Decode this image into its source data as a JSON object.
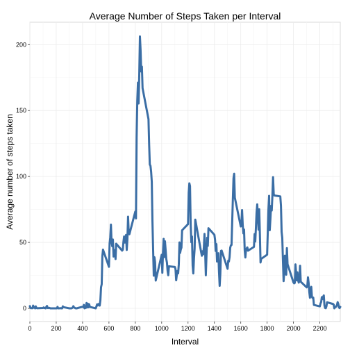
{
  "chart_data": {
    "type": "line",
    "title": "Average Number of Steps Taken per Interval",
    "xlabel": "Interval",
    "ylabel": "Average number of steps taken",
    "xlim": [
      0,
      2355
    ],
    "ylim": [
      -10,
      217
    ],
    "x_ticks": [
      0,
      200,
      400,
      600,
      800,
      1000,
      1200,
      1400,
      1600,
      1800,
      2000,
      2200
    ],
    "y_ticks": [
      0,
      50,
      100,
      150,
      200
    ],
    "grid": true,
    "legend": "none",
    "line_color": "#3b6ea5",
    "background": "#ffffff",
    "grid_color": "#ebebeb",
    "series": [
      {
        "points": [
          [
            0,
            1.7
          ],
          [
            5,
            0.3
          ],
          [
            10,
            0.1
          ],
          [
            15,
            0.2
          ],
          [
            20,
            0.1
          ],
          [
            25,
            2.1
          ],
          [
            30,
            0.5
          ],
          [
            35,
            0.9
          ],
          [
            40,
            0
          ],
          [
            45,
            1.5
          ],
          [
            50,
            0.3
          ],
          [
            55,
            0.1
          ],
          [
            100,
            0.3
          ],
          [
            105,
            0.7
          ],
          [
            110,
            0.2
          ],
          [
            115,
            0.3
          ],
          [
            120,
            0
          ],
          [
            125,
            1.1
          ],
          [
            130,
            1.8
          ],
          [
            135,
            0.2
          ],
          [
            140,
            0.2
          ],
          [
            145,
            0.4
          ],
          [
            150,
            0.3
          ],
          [
            155,
            0
          ],
          [
            200,
            0
          ],
          [
            205,
            0
          ],
          [
            210,
            1.1
          ],
          [
            215,
            0
          ],
          [
            220,
            0
          ],
          [
            225,
            0.1
          ],
          [
            230,
            0
          ],
          [
            235,
            0.2
          ],
          [
            240,
            0
          ],
          [
            245,
            0
          ],
          [
            250,
            1.5
          ],
          [
            255,
            0.9
          ],
          [
            300,
            0
          ],
          [
            305,
            0
          ],
          [
            310,
            0
          ],
          [
            315,
            0
          ],
          [
            320,
            0.2
          ],
          [
            325,
            0.6
          ],
          [
            330,
            1.6
          ],
          [
            335,
            0.6
          ],
          [
            340,
            0.5
          ],
          [
            345,
            0.1
          ],
          [
            350,
            0
          ],
          [
            355,
            0
          ],
          [
            400,
            1.2
          ],
          [
            405,
            0.9
          ],
          [
            410,
            2.6
          ],
          [
            415,
            0
          ],
          [
            420,
            0.3
          ],
          [
            425,
            0.4
          ],
          [
            430,
            4.1
          ],
          [
            435,
            0.7
          ],
          [
            440,
            3.5
          ],
          [
            445,
            0.8
          ],
          [
            450,
            3.1
          ],
          [
            455,
            1.1
          ],
          [
            500,
            0
          ],
          [
            505,
            1.5
          ],
          [
            510,
            3.0
          ],
          [
            515,
            2.2
          ],
          [
            520,
            3.3
          ],
          [
            525,
            3.0
          ],
          [
            530,
            2.1
          ],
          [
            535,
            6.1
          ],
          [
            540,
            16.0
          ],
          [
            545,
            18.3
          ],
          [
            550,
            39.5
          ],
          [
            555,
            44.5
          ],
          [
            600,
            31.5
          ],
          [
            605,
            49.3
          ],
          [
            610,
            53.8
          ],
          [
            615,
            63.5
          ],
          [
            620,
            50.0
          ],
          [
            625,
            47.1
          ],
          [
            630,
            52.2
          ],
          [
            635,
            39.3
          ],
          [
            640,
            44.0
          ],
          [
            645,
            44.2
          ],
          [
            650,
            37.4
          ],
          [
            655,
            49.0
          ],
          [
            700,
            43.8
          ],
          [
            705,
            44.4
          ],
          [
            710,
            50.5
          ],
          [
            715,
            54.5
          ],
          [
            720,
            49.9
          ],
          [
            725,
            50.9
          ],
          [
            730,
            55.7
          ],
          [
            735,
            44.3
          ],
          [
            740,
            52.3
          ],
          [
            745,
            69.5
          ],
          [
            750,
            57.8
          ],
          [
            755,
            56.2
          ],
          [
            800,
            73.4
          ],
          [
            805,
            68.2
          ],
          [
            810,
            129.4
          ],
          [
            815,
            157.5
          ],
          [
            820,
            171.2
          ],
          [
            825,
            155.4
          ],
          [
            830,
            177.3
          ],
          [
            835,
            206.2
          ],
          [
            840,
            195.9
          ],
          [
            845,
            179.6
          ],
          [
            850,
            183.4
          ],
          [
            855,
            167.0
          ],
          [
            900,
            143.5
          ],
          [
            905,
            124.0
          ],
          [
            910,
            109.1
          ],
          [
            915,
            108.1
          ],
          [
            920,
            103.7
          ],
          [
            925,
            95.97
          ],
          [
            930,
            66.2
          ],
          [
            935,
            45.2
          ],
          [
            940,
            24.8
          ],
          [
            945,
            38.8
          ],
          [
            950,
            35.0
          ],
          [
            955,
            21.1
          ],
          [
            1000,
            40.6
          ],
          [
            1005,
            26.98
          ],
          [
            1010,
            42.4
          ],
          [
            1015,
            52.7
          ],
          [
            1020,
            38.9
          ],
          [
            1025,
            50.8
          ],
          [
            1030,
            44.3
          ],
          [
            1035,
            37.4
          ],
          [
            1040,
            34.7
          ],
          [
            1045,
            28.3
          ],
          [
            1050,
            25.1
          ],
          [
            1055,
            31.9
          ],
          [
            1100,
            31.4
          ],
          [
            1105,
            29.7
          ],
          [
            1110,
            21.3
          ],
          [
            1115,
            25.5
          ],
          [
            1120,
            28.4
          ],
          [
            1125,
            26.5
          ],
          [
            1130,
            33.4
          ],
          [
            1135,
            49.98
          ],
          [
            1140,
            42.0
          ],
          [
            1145,
            44.6
          ],
          [
            1150,
            46.0
          ],
          [
            1155,
            59.2
          ],
          [
            1200,
            63.9
          ],
          [
            1205,
            87.7
          ],
          [
            1210,
            94.8
          ],
          [
            1215,
            92.8
          ],
          [
            1220,
            63.4
          ],
          [
            1225,
            50.2
          ],
          [
            1230,
            54.5
          ],
          [
            1235,
            32.4
          ],
          [
            1240,
            26.5
          ],
          [
            1245,
            37.7
          ],
          [
            1250,
            45.1
          ],
          [
            1255,
            67.3
          ],
          [
            1300,
            42.3
          ],
          [
            1305,
            39.9
          ],
          [
            1310,
            43.3
          ],
          [
            1315,
            40.98
          ],
          [
            1320,
            46.2
          ],
          [
            1325,
            56.4
          ],
          [
            1330,
            42.8
          ],
          [
            1335,
            25.1
          ],
          [
            1340,
            39.96
          ],
          [
            1345,
            53.5
          ],
          [
            1350,
            47.4
          ],
          [
            1355,
            60.8
          ],
          [
            1400,
            55.8
          ],
          [
            1405,
            51.96
          ],
          [
            1410,
            43.6
          ],
          [
            1415,
            48.7
          ],
          [
            1420,
            35.5
          ],
          [
            1425,
            37.5
          ],
          [
            1430,
            41.8
          ],
          [
            1435,
            27.5
          ],
          [
            1440,
            17.1
          ],
          [
            1445,
            26.1
          ],
          [
            1450,
            43.6
          ],
          [
            1455,
            43.8
          ],
          [
            1500,
            30.0
          ],
          [
            1505,
            36.1
          ],
          [
            1510,
            35.5
          ],
          [
            1515,
            38.8
          ],
          [
            1520,
            45.96
          ],
          [
            1525,
            47.8
          ],
          [
            1530,
            48.1
          ],
          [
            1535,
            65.3
          ],
          [
            1540,
            82.9
          ],
          [
            1545,
            98.7
          ],
          [
            1550,
            102.1
          ],
          [
            1555,
            83.96
          ],
          [
            1600,
            62.1
          ],
          [
            1605,
            64.1
          ],
          [
            1610,
            74.5
          ],
          [
            1615,
            63.2
          ],
          [
            1620,
            56.9
          ],
          [
            1625,
            59.8
          ],
          [
            1630,
            43.9
          ],
          [
            1635,
            38.6
          ],
          [
            1640,
            44.7
          ],
          [
            1645,
            45.5
          ],
          [
            1650,
            46.2
          ],
          [
            1655,
            43.7
          ],
          [
            1700,
            46.6
          ],
          [
            1705,
            56.3
          ],
          [
            1710,
            50.7
          ],
          [
            1715,
            61.2
          ],
          [
            1720,
            72.7
          ],
          [
            1725,
            78.9
          ],
          [
            1730,
            68.9
          ],
          [
            1735,
            59.7
          ],
          [
            1740,
            75.1
          ],
          [
            1745,
            56.5
          ],
          [
            1750,
            34.8
          ],
          [
            1755,
            37.5
          ],
          [
            1800,
            40.7
          ],
          [
            1805,
            58.0
          ],
          [
            1810,
            74.7
          ],
          [
            1815,
            85.3
          ],
          [
            1820,
            59.3
          ],
          [
            1825,
            67.8
          ],
          [
            1830,
            77.7
          ],
          [
            1835,
            74.2
          ],
          [
            1840,
            85.3
          ],
          [
            1845,
            99.5
          ],
          [
            1850,
            86.6
          ],
          [
            1855,
            85.6
          ],
          [
            1900,
            84.9
          ],
          [
            1905,
            77.8
          ],
          [
            1910,
            58.0
          ],
          [
            1915,
            53.4
          ],
          [
            1920,
            36.3
          ],
          [
            1925,
            20.7
          ],
          [
            1930,
            27.4
          ],
          [
            1935,
            40.0
          ],
          [
            1940,
            30.2
          ],
          [
            1945,
            25.5
          ],
          [
            1950,
            45.7
          ],
          [
            1955,
            33.5
          ],
          [
            2000,
            19.6
          ],
          [
            2005,
            19.0
          ],
          [
            2010,
            19.3
          ],
          [
            2015,
            33.3
          ],
          [
            2020,
            26.8
          ],
          [
            2025,
            21.2
          ],
          [
            2030,
            27.3
          ],
          [
            2035,
            21.3
          ],
          [
            2040,
            19.5
          ],
          [
            2045,
            21.3
          ],
          [
            2050,
            32.3
          ],
          [
            2055,
            20.2
          ],
          [
            2100,
            15.9
          ],
          [
            2105,
            17.2
          ],
          [
            2110,
            23.5
          ],
          [
            2115,
            19.2
          ],
          [
            2120,
            12.5
          ],
          [
            2125,
            8.0
          ],
          [
            2130,
            14.7
          ],
          [
            2135,
            16.3
          ],
          [
            2140,
            8.7
          ],
          [
            2145,
            7.8
          ],
          [
            2150,
            8.1
          ],
          [
            2155,
            2.6
          ],
          [
            2200,
            1.5
          ],
          [
            2205,
            3.7
          ],
          [
            2210,
            4.8
          ],
          [
            2215,
            8.5
          ],
          [
            2220,
            7.1
          ],
          [
            2225,
            8.7
          ],
          [
            2230,
            9.8
          ],
          [
            2235,
            2.2
          ],
          [
            2240,
            0.3
          ],
          [
            2245,
            0.1
          ],
          [
            2250,
            1.6
          ],
          [
            2255,
            4.6
          ],
          [
            2300,
            3.3
          ],
          [
            2305,
            2.8
          ],
          [
            2310,
            0
          ],
          [
            2315,
            0.8
          ],
          [
            2320,
            1.0
          ],
          [
            2325,
            1.6
          ],
          [
            2330,
            2.6
          ],
          [
            2335,
            4.7
          ],
          [
            2340,
            3.3
          ],
          [
            2345,
            0.6
          ],
          [
            2350,
            0.2
          ],
          [
            2355,
            1.1
          ]
        ]
      }
    ]
  }
}
